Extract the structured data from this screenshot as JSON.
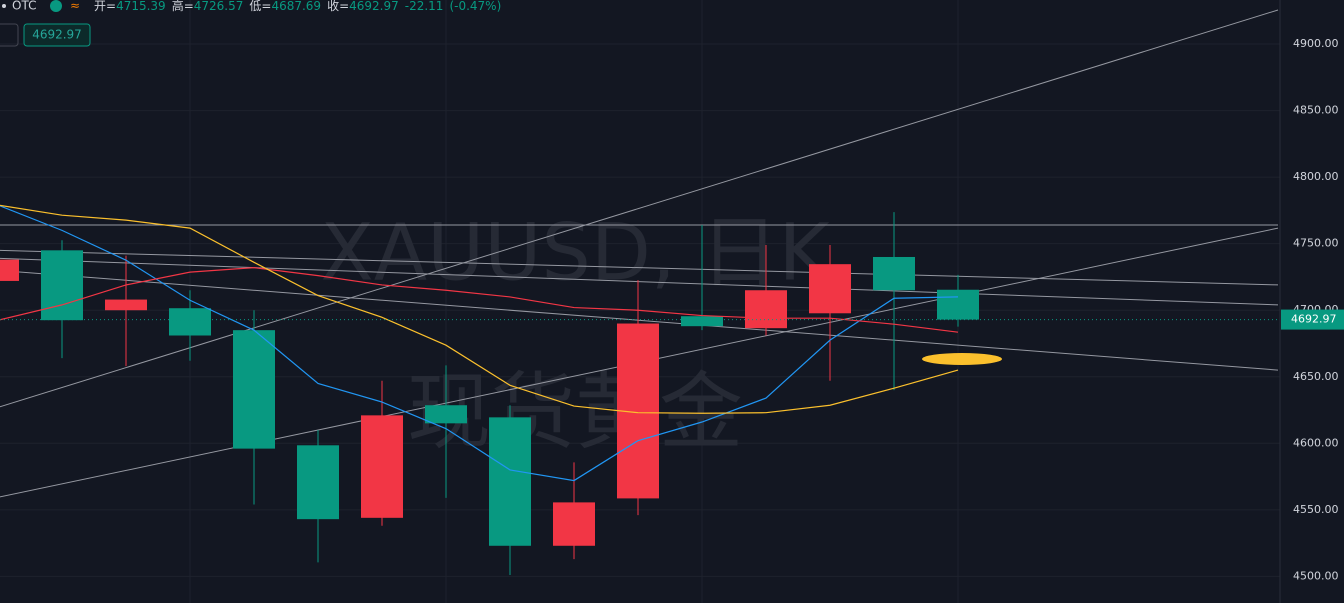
{
  "chart_data": {
    "type": "candlestick",
    "header": {
      "symbol": "OTC",
      "fields": [
        {
          "label": "开=",
          "value": "4715.39"
        },
        {
          "label": "高=",
          "value": "4726.57"
        },
        {
          "label": "低=",
          "value": "4687.69"
        },
        {
          "label": "收=",
          "value": "4692.97"
        }
      ],
      "change": "-22.11",
      "change_pct": "(-0.47%)"
    },
    "last_label": "4692.97",
    "watermark": [
      "XAUUSD, 日K",
      "现货黄金"
    ],
    "categories": [
      null,
      null,
      null,
      null,
      null,
      null,
      null,
      null,
      null,
      null,
      null,
      null,
      null,
      null,
      null,
      null
    ],
    "open": [
      4722,
      4745,
      4700,
      4701.5,
      4685,
      4598.5,
      4544,
      4628.6,
      4619.5,
      4523,
      4558.6,
      4695.5,
      4686.5,
      4697.7,
      4740,
      4715.39
    ],
    "high": [
      4740,
      4752.6,
      4741,
      4715,
      4700,
      4610,
      4647,
      4658.6,
      4628.6,
      4585.7,
      4722.6,
      4764,
      4749,
      4749,
      4773.7,
      4726.57
    ],
    "low": [
      4720,
      4664,
      4658,
      4662,
      4554,
      4510.5,
      4538,
      4559,
      4501,
      4513,
      4546,
      4685,
      4681,
      4647,
      4640,
      4687.69
    ],
    "close": [
      4738,
      4692.5,
      4708,
      4681,
      4596,
      4543,
      4621,
      4615,
      4523,
      4555.6,
      4690,
      4688,
      4715,
      4734.6,
      4715,
      4692.97
    ],
    "up_color": "#f23645",
    "down_color": "#089981",
    "series": [
      {
        "color": "#2196f3",
        "values": [
          4779,
          4760,
          4737.6,
          4707.5,
          4685,
          4645,
          4631,
          4611,
          4580,
          4572,
          4602,
          4616,
          4634,
          4677.5,
          4709,
          4710
        ]
      },
      {
        "color": "#f23645",
        "values": [
          4692.5,
          4704,
          4719,
          4728.6,
          4732,
          4726,
          4719,
          4715,
          4710,
          4702,
          4700,
          4696,
          4694,
          4694,
          4689.5,
          4683.5
        ]
      },
      {
        "color": "#fbc02d",
        "values": [
          4779,
          4771.4,
          4767.7,
          4761.7,
          4736,
          4711,
          4694.7,
          4673.7,
          4643.6,
          4628,
          4623,
          4622.6,
          4623,
          4628.6,
          4641.4,
          4655
        ]
      }
    ],
    "lines": [
      {
        "x": [
          0,
          20
        ],
        "y": [
          4627,
          4925.6
        ]
      },
      {
        "x": [
          0,
          20
        ],
        "y": [
          4559.4,
          4761.7
        ]
      },
      {
        "x": [
          0,
          20
        ],
        "y": [
          4764,
          4764
        ]
      },
      {
        "x": [
          0,
          20
        ],
        "y": [
          4745,
          4719
        ]
      },
      {
        "x": [
          0,
          20
        ],
        "y": [
          4739,
          4704
        ]
      },
      {
        "x": [
          0,
          20
        ],
        "y": [
          4730,
          4655
        ]
      }
    ],
    "ylim": [
      4480,
      4933.1
    ],
    "yticks": [
      {
        "value": 4500,
        "label": "4500.00"
      },
      {
        "value": 4550,
        "label": "4550.00"
      },
      {
        "value": 4600,
        "label": "4600.00"
      },
      {
        "value": 4650,
        "label": "4650.00"
      },
      {
        "value": 4700,
        "label": "4700.00"
      },
      {
        "value": 4750,
        "label": "4750.00"
      },
      {
        "value": 4800,
        "label": "4800.00"
      },
      {
        "value": 4850,
        "label": "4850.00"
      },
      {
        "value": 4900,
        "label": "4900.00"
      }
    ],
    "grid": true
  }
}
